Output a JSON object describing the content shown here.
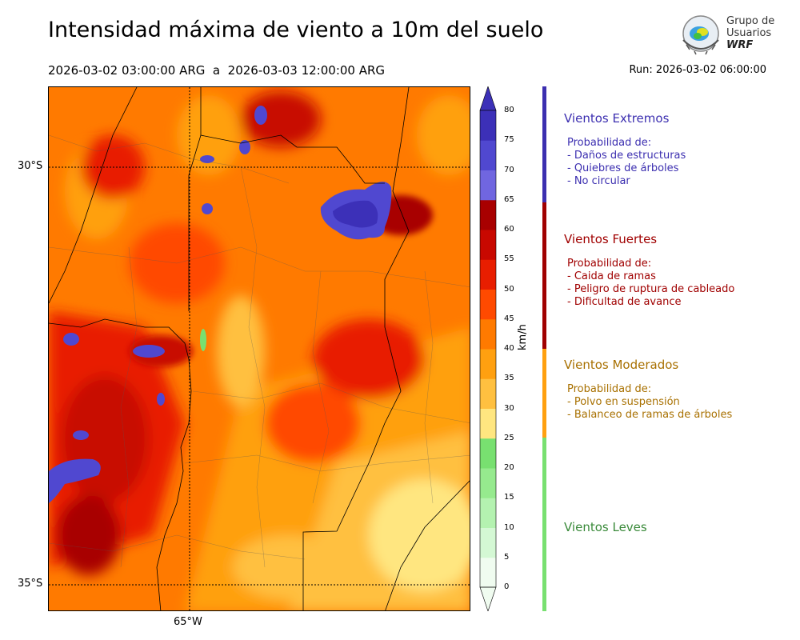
{
  "title": "Intensidad máxima de viento a 10m del suelo",
  "subtitle": "2026-03-02 03:00:00 ARG  a  2026-03-03 12:00:00 ARG",
  "run": "Run: 2026-03-02 06:00:00",
  "logo": {
    "line1": "Grupo de",
    "line2": "Usuarios",
    "line3": "WRF"
  },
  "axes": {
    "lat_labels": [
      "30°S",
      "35°S"
    ],
    "lon_labels": [
      "65°W"
    ]
  },
  "colorbar": {
    "unit": "km/h",
    "ticks": [
      "0",
      "5",
      "10",
      "15",
      "20",
      "25",
      "30",
      "35",
      "40",
      "45",
      "50",
      "55",
      "60",
      "65",
      "70",
      "75",
      "80"
    ],
    "colors": [
      "#f0fcf0",
      "#d4f8d4",
      "#b4f2b0",
      "#96ea8e",
      "#78e070",
      "#ffe680",
      "#ffc040",
      "#ffa010",
      "#ff7a00",
      "#ff4a00",
      "#e81e00",
      "#c80800",
      "#a80000",
      "#7066e0",
      "#5048d0",
      "#3c30b8"
    ]
  },
  "categories": [
    {
      "name": "Vientos Extremos",
      "color": "#3c2fb0",
      "lines": [
        "Probabilidad de:",
        "- Daños de estructuras",
        "- Quiebres de árboles",
        "- No circular"
      ]
    },
    {
      "name": "Vientos Fuertes",
      "color": "#a00000",
      "lines": [
        "Probabilidad de:",
        "- Caida de ramas",
        "- Peligro de ruptura de cableado",
        "- Dificultad de avance"
      ]
    },
    {
      "name": "Vientos Moderados",
      "color": "#a87000",
      "lines": [
        "Probabilidad de:",
        "- Polvo en suspensión",
        "- Balanceo de ramas de árboles"
      ]
    },
    {
      "name": "Vientos Leves",
      "color": "#3a8a3a",
      "lines": []
    }
  ]
}
